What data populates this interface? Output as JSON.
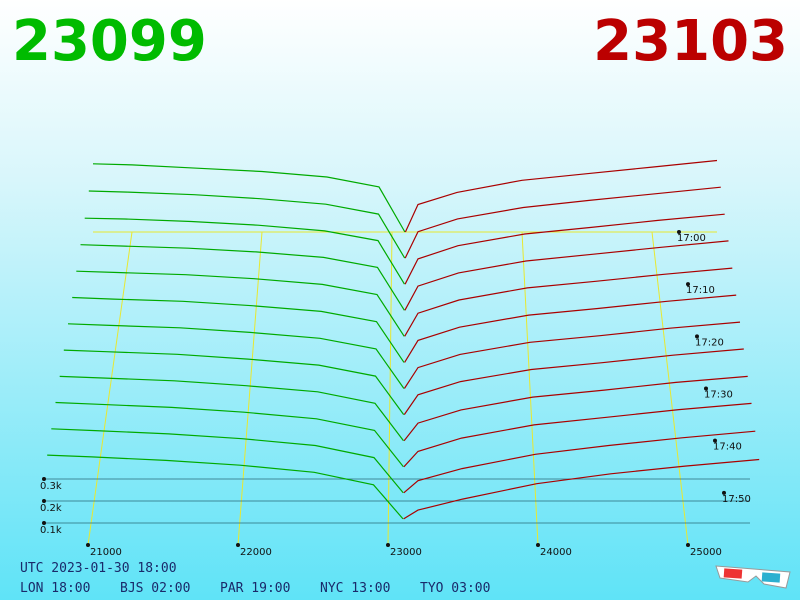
{
  "chart_data": {
    "type": "depth3d",
    "bid_price": 23099,
    "ask_price": 23103,
    "bid_color": "#00aa00",
    "ask_color": "#aa0000",
    "bid_prices": [
      20700,
      21000,
      21500,
      22000,
      22500,
      22900,
      23099
    ],
    "ask_prices": [
      23103,
      23200,
      23500,
      24000,
      24500,
      25000,
      25500
    ],
    "snapshots": [
      {
        "time": 0,
        "bid": [
          310,
          305,
          290,
          275,
          250,
          205,
          0
        ],
        "ask": [
          0,
          125,
          180,
          235,
          265,
          295,
          325
        ]
      },
      {
        "time": 5,
        "bid": [
          305,
          300,
          288,
          270,
          245,
          200,
          0
        ],
        "ask": [
          0,
          120,
          178,
          230,
          262,
          292,
          322
        ]
      },
      {
        "time": 10,
        "bid": [
          300,
          296,
          285,
          268,
          242,
          198,
          0
        ],
        "ask": [
          0,
          115,
          175,
          228,
          258,
          290,
          318
        ]
      },
      {
        "time": 15,
        "bid": [
          298,
          292,
          282,
          265,
          240,
          195,
          0
        ],
        "ask": [
          0,
          110,
          170,
          224,
          255,
          286,
          315
        ]
      },
      {
        "time": 20,
        "bid": [
          296,
          290,
          280,
          262,
          236,
          190,
          0
        ],
        "ask": [
          0,
          105,
          165,
          220,
          250,
          282,
          310
        ]
      },
      {
        "time": 25,
        "bid": [
          295,
          288,
          278,
          258,
          232,
          185,
          0
        ],
        "ask": [
          0,
          100,
          160,
          215,
          245,
          278,
          306
        ]
      },
      {
        "time": 30,
        "bid": [
          294,
          287,
          276,
          255,
          228,
          180,
          0
        ],
        "ask": [
          0,
          95,
          155,
          210,
          240,
          274,
          302
        ]
      },
      {
        "time": 35,
        "bid": [
          293,
          286,
          274,
          252,
          225,
          175,
          0
        ],
        "ask": [
          0,
          90,
          150,
          205,
          236,
          270,
          298
        ]
      },
      {
        "time": 40,
        "bid": [
          292,
          285,
          272,
          250,
          222,
          170,
          0
        ],
        "ask": [
          0,
          80,
          140,
          198,
          230,
          265,
          292
        ]
      },
      {
        "time": 45,
        "bid": [
          292,
          284,
          270,
          248,
          218,
          165,
          0
        ],
        "ask": [
          0,
          70,
          130,
          190,
          225,
          260,
          288
        ]
      },
      {
        "time": 50,
        "bid": [
          291,
          283,
          268,
          246,
          215,
          160,
          0
        ],
        "ask": [
          0,
          55,
          110,
          175,
          215,
          250,
          280
        ]
      },
      {
        "time": 55,
        "bid": [
          290,
          282,
          266,
          244,
          212,
          155,
          0
        ],
        "ask": [
          0,
          40,
          90,
          160,
          205,
          240,
          270
        ]
      }
    ],
    "xlim": [
      20700,
      25500
    ],
    "xticks": [
      21000,
      22000,
      23000,
      24000,
      25000
    ],
    "zlim": [
      0,
      60
    ],
    "zticks": [
      {
        "value": 0,
        "label": "17:00"
      },
      {
        "value": 10,
        "label": "17:10"
      },
      {
        "value": 20,
        "label": "17:20"
      },
      {
        "value": 30,
        "label": "17:30"
      },
      {
        "value": 40,
        "label": "17:40"
      },
      {
        "value": 50,
        "label": "17:50"
      }
    ],
    "yticks": [
      {
        "value": 100,
        "label": "0.1k"
      },
      {
        "value": 200,
        "label": "0.2k"
      },
      {
        "value": 300,
        "label": "0.3k"
      }
    ]
  },
  "footer": {
    "utc": "UTC 2023-01-30 18:00",
    "clocks": [
      "LON 18:00",
      "BJS 02:00",
      "PAR 19:00",
      "NYC 13:00",
      "TYO 03:00"
    ]
  }
}
